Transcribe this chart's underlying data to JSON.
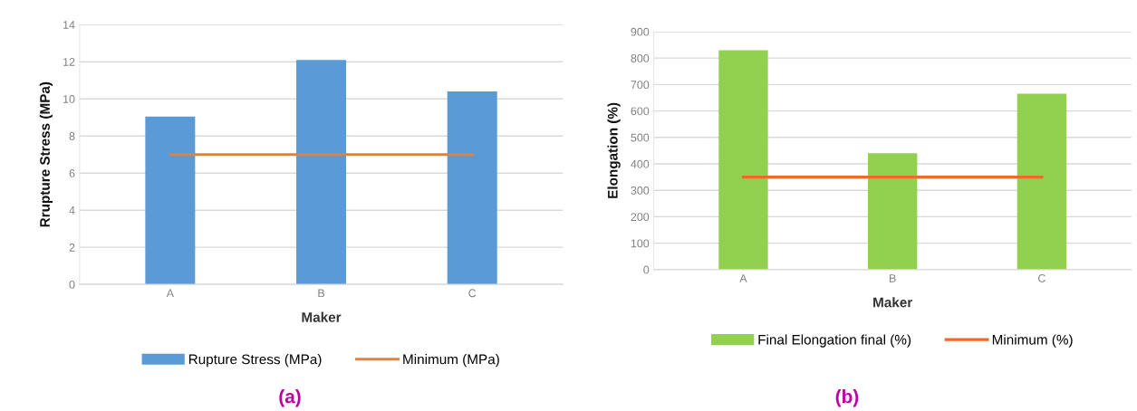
{
  "chart_data": [
    {
      "type": "bar",
      "xlabel": "Maker",
      "ylabel": "Rrupture Stress (MPa)",
      "categories": [
        "A",
        "B",
        "C"
      ],
      "ylim": [
        0,
        14
      ],
      "yticks": [
        0,
        2,
        4,
        6,
        8,
        10,
        12,
        14
      ],
      "grid": "y",
      "legend": "bottom",
      "annotations": [
        "(a)"
      ],
      "series": [
        {
          "name": "Rupture Stress (MPa)",
          "color": "#5b9bd5",
          "values": [
            9.05,
            12.1,
            10.4
          ]
        },
        {
          "name": "Minimum (MPa)",
          "type": "line",
          "color": "#ed7d31",
          "values": [
            7,
            7,
            7
          ]
        }
      ]
    },
    {
      "type": "bar",
      "xlabel": "Maker",
      "ylabel": "Elongation (%)",
      "categories": [
        "A",
        "B",
        "C"
      ],
      "ylim": [
        0,
        900
      ],
      "yticks": [
        0,
        100,
        200,
        300,
        400,
        500,
        600,
        700,
        800,
        900
      ],
      "grid": "y",
      "legend": "bottom",
      "annotations": [
        "(b)"
      ],
      "series": [
        {
          "name": "Final Elongation final (%)",
          "color": "#92d050",
          "values": [
            830,
            440,
            665
          ]
        },
        {
          "name": "Minimum (%)",
          "type": "line",
          "color": "#ed6a2a",
          "values": [
            350,
            350,
            350
          ]
        }
      ]
    }
  ]
}
